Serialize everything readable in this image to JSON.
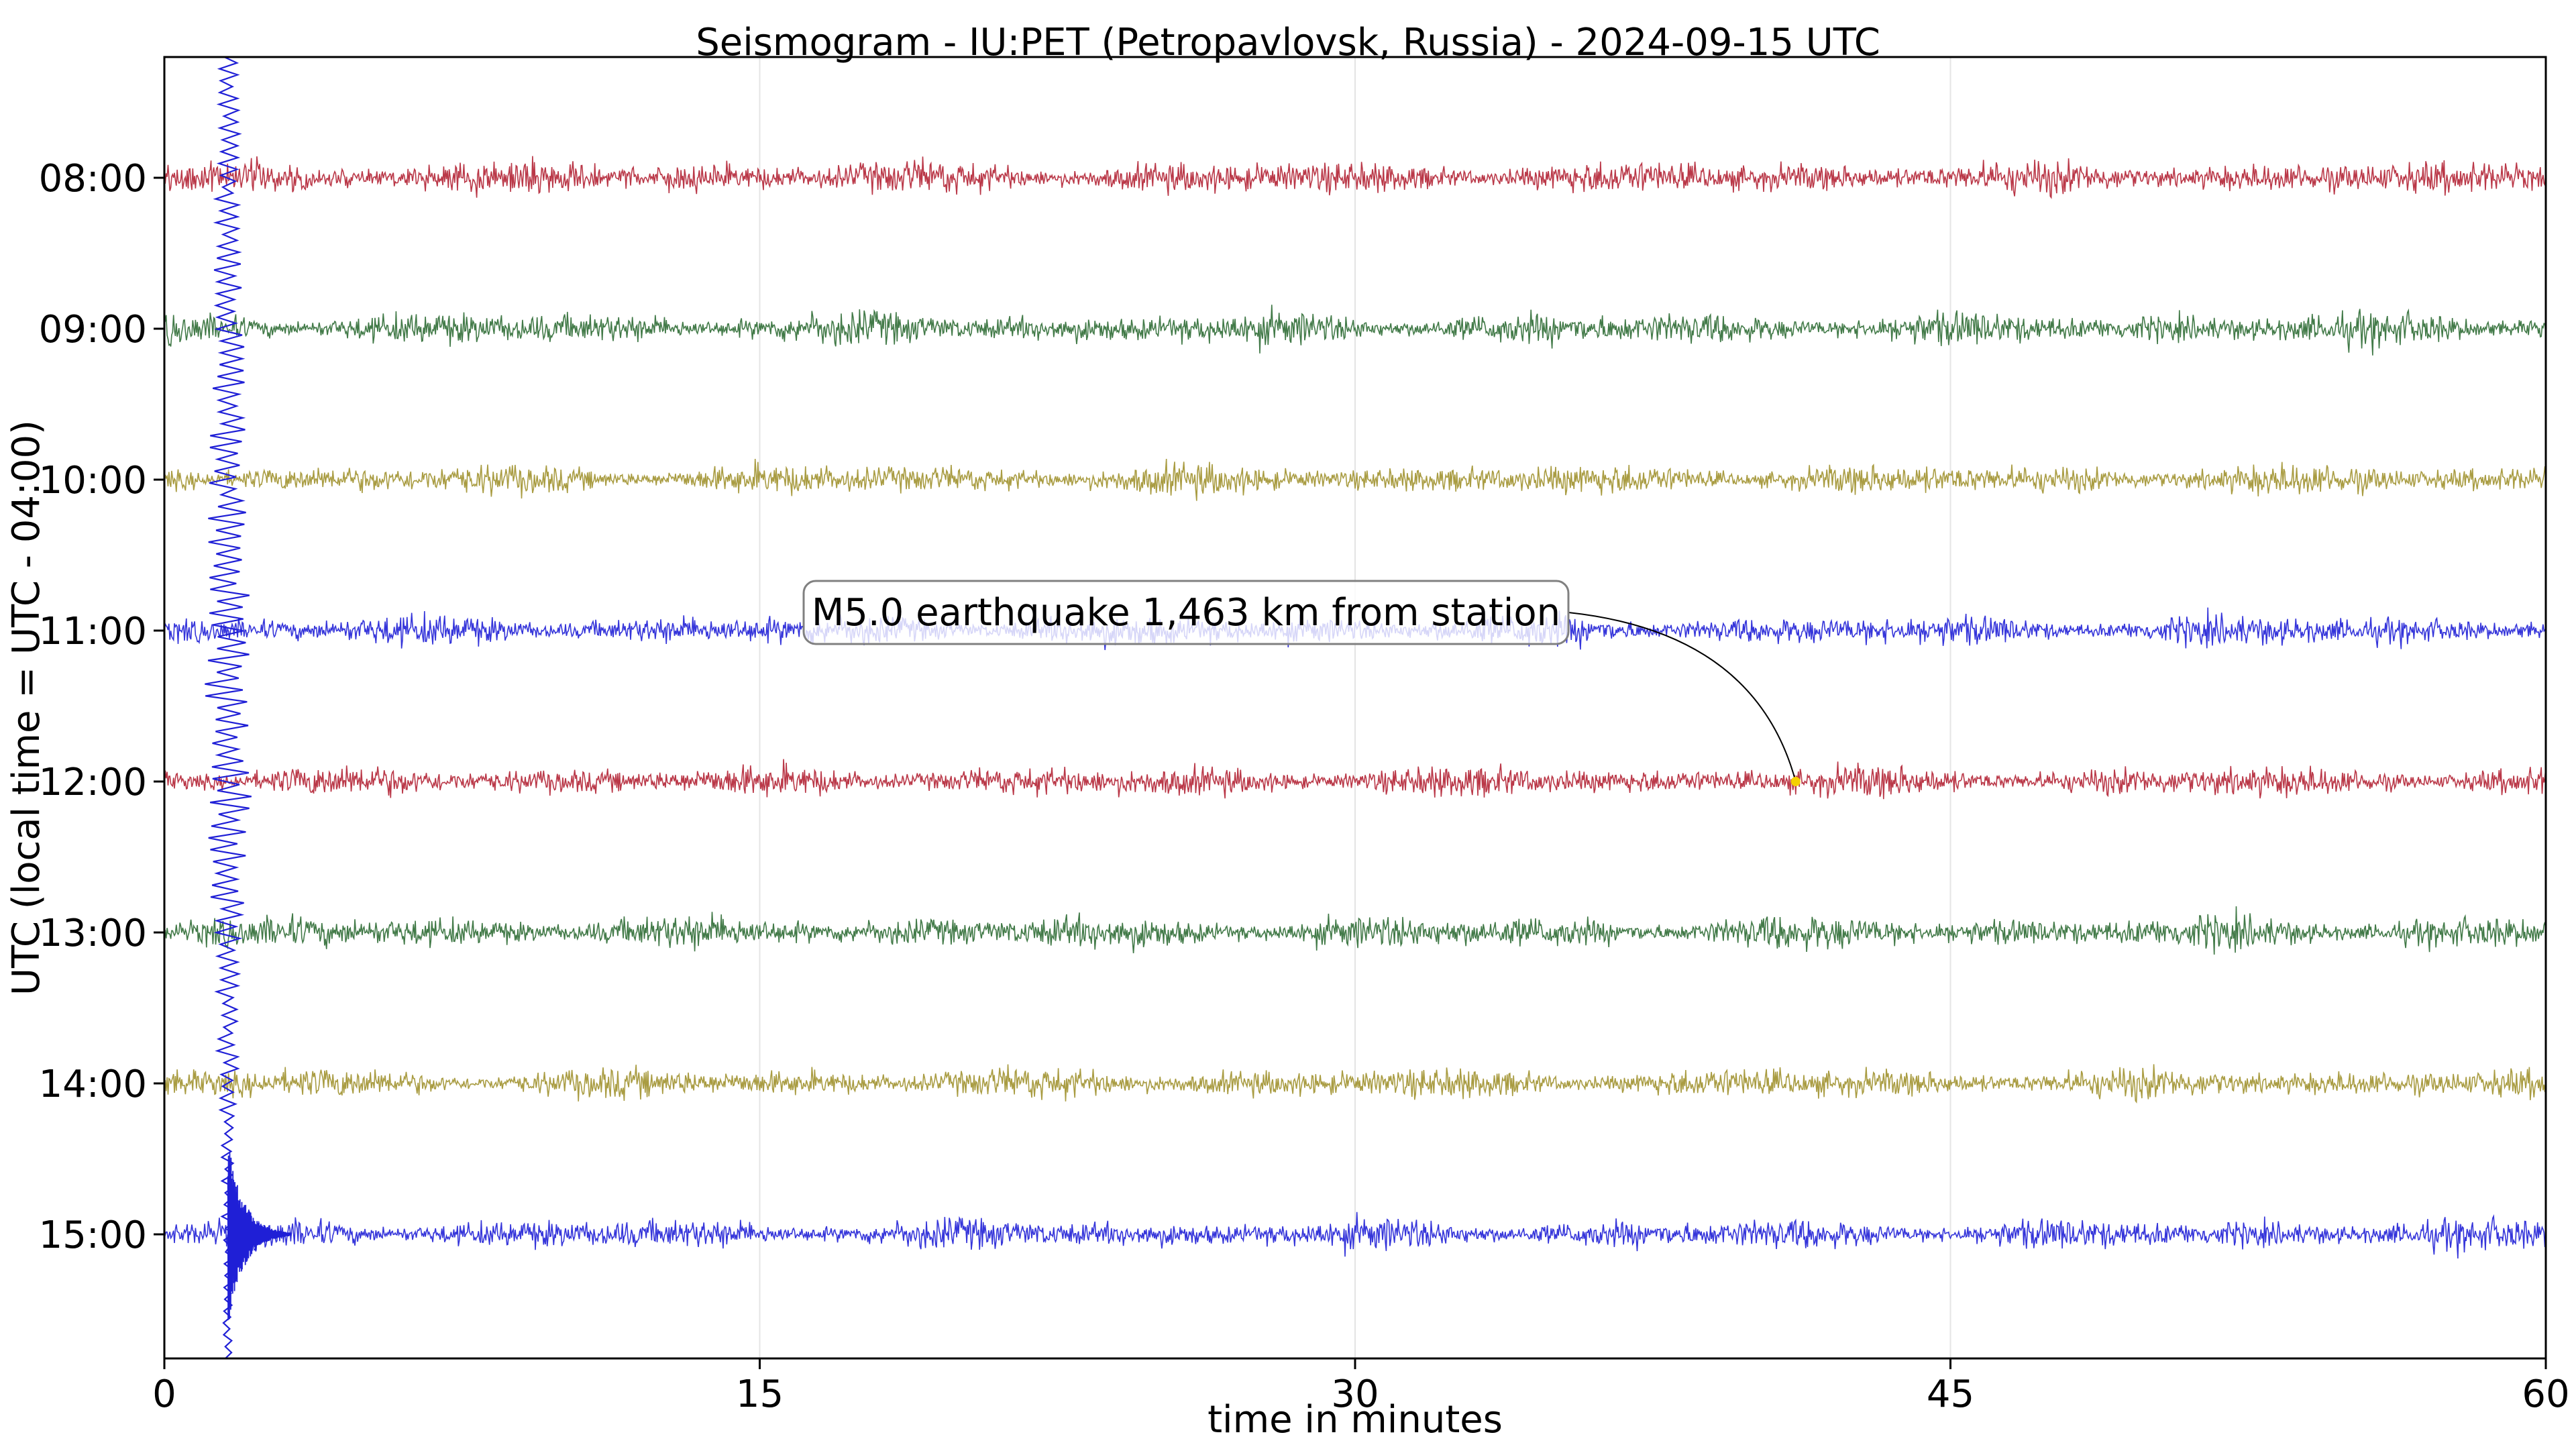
{
  "chart_data": {
    "type": "line",
    "title": "Seismogram - IU:PET (Petropavlovsk, Russia) - 2024-09-15 UTC",
    "xlabel": "time in minutes",
    "ylabel": "UTC (local time = UTC - 04:00)",
    "xlim": [
      0,
      60
    ],
    "x_ticks": [
      0,
      15,
      30,
      45,
      60
    ],
    "y_tick_labels": [
      "08:00",
      "09:00",
      "10:00",
      "11:00",
      "12:00",
      "13:00",
      "14:00",
      "15:00"
    ],
    "grid": true,
    "series": [
      {
        "hour": "08:00",
        "color": "#b22234",
        "amplitude": 0.26
      },
      {
        "hour": "09:00",
        "color": "#2e6b34",
        "amplitude": 0.26
      },
      {
        "hour": "10:00",
        "color": "#a0912d",
        "amplitude": 0.24
      },
      {
        "hour": "11:00",
        "color": "#1f1fd6",
        "amplitude": 0.24
      },
      {
        "hour": "12:00",
        "color": "#b22234",
        "amplitude": 0.24
      },
      {
        "hour": "13:00",
        "color": "#2e6b34",
        "amplitude": 0.26
      },
      {
        "hour": "14:00",
        "color": "#a0912d",
        "amplitude": 0.24
      },
      {
        "hour": "15:00",
        "color": "#1f1fd6",
        "amplitude": 0.24
      }
    ],
    "event_spike": {
      "x_minutes": 1.6,
      "color": "#1f1fd6"
    },
    "annotation": {
      "text": "M5.0 earthquake 1,463 km from station",
      "point_hour": "12:00",
      "point_x_minutes": 41.1,
      "marker_color": "#f5d000"
    }
  }
}
